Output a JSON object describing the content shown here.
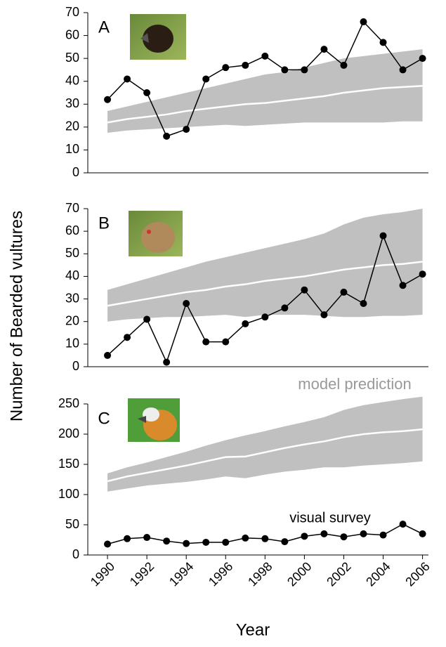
{
  "chart_data": [
    {
      "type": "line",
      "title": "A",
      "ylabel": "Number of Bearded vultures",
      "x": [
        1990,
        1991,
        1992,
        1993,
        1994,
        1995,
        1996,
        1997,
        1998,
        1999,
        2000,
        2001,
        2002,
        2003,
        2004,
        2005,
        2006
      ],
      "xlim": [
        1989,
        2006.3
      ],
      "ylim": [
        0,
        70
      ],
      "yticks": [
        0,
        10,
        20,
        30,
        40,
        50,
        60,
        70
      ],
      "series": [
        {
          "color": "#000000",
          "values": [
            32,
            41,
            35,
            16,
            19,
            41,
            46,
            47,
            51,
            45,
            45,
            54,
            47,
            66,
            57,
            45,
            50
          ]
        }
      ],
      "band": {
        "color": "#c0c0c0",
        "median_color": "#ffffff",
        "upper": [
          27,
          29,
          31,
          33,
          35,
          37,
          39,
          41,
          43,
          44,
          46,
          48,
          50,
          51,
          52,
          53,
          54
        ],
        "lower": [
          17.5,
          18.5,
          19,
          19.5,
          20,
          20.5,
          21,
          20.5,
          21,
          21.5,
          22,
          22,
          22,
          22,
          22,
          22.5,
          22.5
        ],
        "median": [
          22,
          23.5,
          24.5,
          25.5,
          27,
          28,
          29,
          30,
          30.5,
          31.5,
          32.5,
          33.5,
          35,
          36,
          37,
          37.5,
          38
        ]
      }
    },
    {
      "type": "line",
      "title": "B",
      "x": [
        1990,
        1991,
        1992,
        1993,
        1994,
        1995,
        1996,
        1997,
        1998,
        1999,
        2000,
        2001,
        2002,
        2003,
        2004,
        2005,
        2006
      ],
      "xlim": [
        1989,
        2006.3
      ],
      "ylim": [
        0,
        70
      ],
      "yticks": [
        0,
        10,
        20,
        30,
        40,
        50,
        60,
        70
      ],
      "series": [
        {
          "color": "#000000",
          "values": [
            5,
            13,
            21,
            2,
            28,
            11,
            11,
            19,
            22,
            26,
            34,
            23,
            33,
            28,
            58,
            36,
            41
          ]
        }
      ],
      "band": {
        "color": "#c0c0c0",
        "median_color": "#ffffff",
        "upper": [
          34,
          36.5,
          39,
          41.5,
          44,
          46.5,
          48.5,
          50.5,
          52.5,
          54.5,
          56.5,
          59,
          63,
          66,
          67.5,
          68.5,
          70
        ],
        "lower": [
          20,
          21,
          21.5,
          22,
          22,
          22.5,
          23,
          22,
          23,
          23,
          23,
          22.5,
          22,
          22,
          22.5,
          22.5,
          23
        ],
        "median": [
          27,
          28.5,
          30,
          31.5,
          33,
          34,
          35.5,
          36.5,
          38,
          39,
          40,
          41.5,
          43,
          44,
          45,
          45.5,
          46.5
        ]
      }
    },
    {
      "type": "line",
      "title": "C",
      "xlabel": "Year",
      "x": [
        1990,
        1991,
        1992,
        1993,
        1994,
        1995,
        1996,
        1997,
        1998,
        1999,
        2000,
        2001,
        2002,
        2003,
        2004,
        2005,
        2006
      ],
      "xlim": [
        1989,
        2006.3
      ],
      "ylim": [
        0,
        250
      ],
      "yticks": [
        0,
        50,
        100,
        150,
        200,
        250
      ],
      "xticks": [
        1990,
        1992,
        1994,
        1996,
        1998,
        2000,
        2002,
        2004,
        2006
      ],
      "series": [
        {
          "color": "#000000",
          "values": [
            18,
            27,
            29,
            23,
            19,
            21,
            21,
            28,
            27,
            22,
            31,
            35,
            30,
            35,
            33,
            51,
            35
          ]
        }
      ],
      "band": {
        "color": "#c0c0c0",
        "median_color": "#ffffff",
        "upper": [
          135,
          145,
          153,
          162,
          171,
          181,
          190,
          198,
          205,
          213,
          220,
          228,
          240,
          248,
          253,
          258,
          262
        ],
        "lower": [
          105,
          110,
          115,
          118,
          121,
          125,
          130,
          127,
          133,
          138,
          141,
          145,
          145,
          148,
          150,
          152,
          155
        ],
        "median": [
          122,
          130,
          136,
          142,
          148,
          155,
          162,
          163,
          170,
          177,
          183,
          188,
          195,
          200,
          203,
          205,
          208
        ]
      },
      "annotations": [
        "model prediction",
        "visual survey"
      ]
    }
  ]
}
